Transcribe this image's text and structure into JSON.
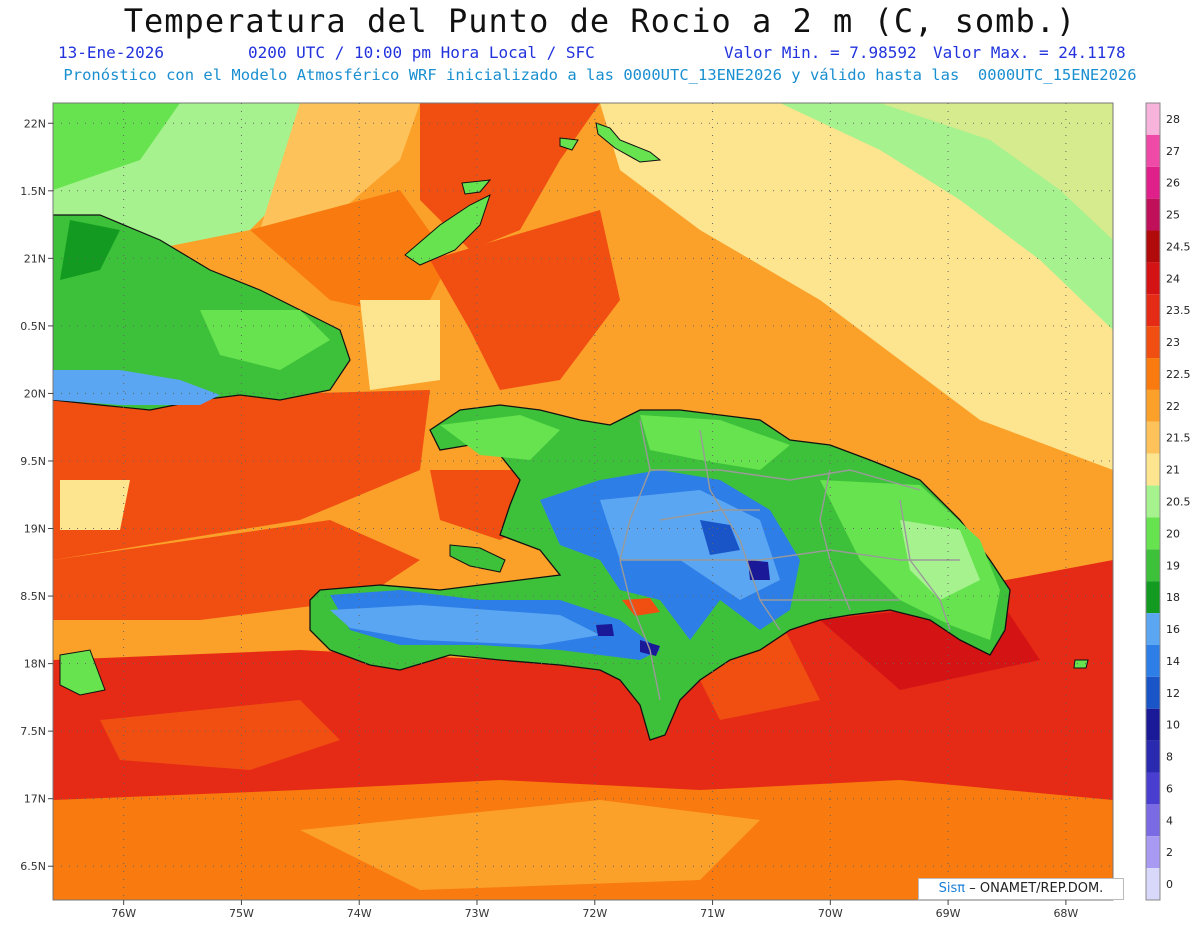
{
  "header": {
    "title": "Temperatura del Punto de Rocio a 2 m (C, somb.)",
    "date": "13-Ene-2026",
    "time": "0200 UTC / 10:00 pm Hora Local / SFC",
    "min_label": "Valor Min. = 7.98592",
    "max_label": "Valor Max. = 24.1178",
    "forecast": "Pronóstico con el Modelo Atmosférico WRF inicializado a las 0000UTC_13ENE2026 y válido hasta las  0000UTC_15ENE2026"
  },
  "credit": {
    "logo": "Sisπ",
    "text": "– ONAMET/REP.DOM."
  },
  "map": {
    "lon_range": [
      -76.6,
      -67.6
    ],
    "lat_range": [
      16.25,
      22.15
    ],
    "lat_ticks": [
      {
        "lat": 22,
        "label": "22N"
      },
      {
        "lat": 21.5,
        "label": "1.5N"
      },
      {
        "lat": 21,
        "label": "21N"
      },
      {
        "lat": 20.5,
        "label": "0.5N"
      },
      {
        "lat": 20,
        "label": "20N"
      },
      {
        "lat": 19.5,
        "label": "9.5N"
      },
      {
        "lat": 19,
        "label": "19N"
      },
      {
        "lat": 18.5,
        "label": "8.5N"
      },
      {
        "lat": 18,
        "label": "18N"
      },
      {
        "lat": 17.5,
        "label": "7.5N"
      },
      {
        "lat": 17,
        "label": "17N"
      },
      {
        "lat": 16.5,
        "label": "6.5N"
      }
    ],
    "lon_ticks": [
      {
        "lon": -76,
        "label": "76W"
      },
      {
        "lon": -75,
        "label": "75W"
      },
      {
        "lon": -74,
        "label": "74W"
      },
      {
        "lon": -73,
        "label": "73W"
      },
      {
        "lon": -72,
        "label": "72W"
      },
      {
        "lon": -71,
        "label": "71W"
      },
      {
        "lon": -70,
        "label": "70W"
      },
      {
        "lon": -69,
        "label": "69W"
      },
      {
        "lon": -68,
        "label": "68W"
      }
    ]
  },
  "legend": [
    {
      "label": "28",
      "color": "#f7b3db"
    },
    {
      "label": "27",
      "color": "#f04aa8"
    },
    {
      "label": "26",
      "color": "#e0208a"
    },
    {
      "label": "25",
      "color": "#c0105a"
    },
    {
      "label": "24.5",
      "color": "#b00a0a"
    },
    {
      "label": "24",
      "color": "#d41414"
    },
    {
      "label": "23.5",
      "color": "#e52a16"
    },
    {
      "label": "23",
      "color": "#f14f12"
    },
    {
      "label": "22.5",
      "color": "#f97a0e"
    },
    {
      "label": "22",
      "color": "#fba12a"
    },
    {
      "label": "21.5",
      "color": "#fdc35a"
    },
    {
      "label": "21",
      "color": "#fde48e"
    },
    {
      "label": "20.5",
      "color": "#a6f28e"
    },
    {
      "label": "20",
      "color": "#66e34e"
    },
    {
      "label": "19",
      "color": "#3ec13a"
    },
    {
      "label": "18",
      "color": "#139a20"
    },
    {
      "label": "16",
      "color": "#5aa6f2"
    },
    {
      "label": "14",
      "color": "#2e7ee8"
    },
    {
      "label": "12",
      "color": "#1a55c8"
    },
    {
      "label": "10",
      "color": "#1a1a98"
    },
    {
      "label": "8",
      "color": "#2a2ab0"
    },
    {
      "label": "6",
      "color": "#4a3ed0"
    },
    {
      "label": "4",
      "color": "#7a6ae4"
    },
    {
      "label": "2",
      "color": "#a89af2"
    },
    {
      "label": "0",
      "color": "#d8d8fa"
    }
  ]
}
